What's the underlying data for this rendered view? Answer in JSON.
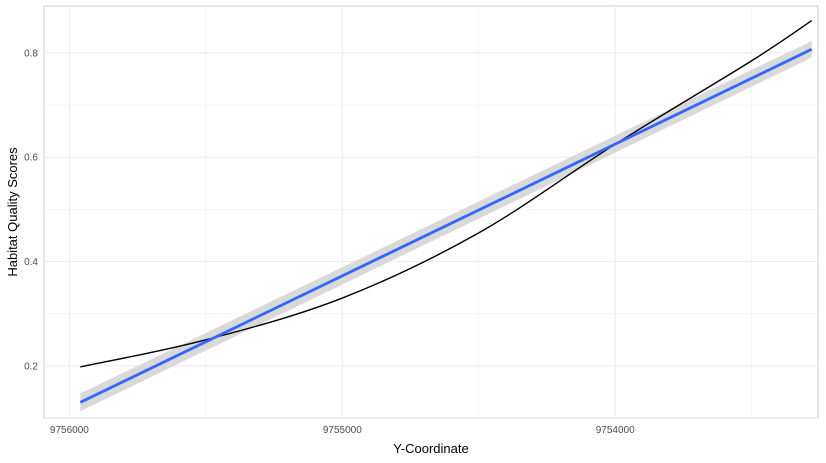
{
  "chart_data": {
    "type": "line",
    "title": "",
    "xlabel": "Y-Coordinate",
    "ylabel": "Habitat Quality Scores",
    "x_reversed": true,
    "xlim": [
      9756093,
      9753257
    ],
    "ylim": [
      0.1,
      0.89
    ],
    "x_ticks": [
      9756000,
      9755000,
      9754000
    ],
    "x_tick_labels": [
      "9756000",
      "9755000",
      "9754000"
    ],
    "y_ticks": [
      0.2,
      0.4,
      0.6,
      0.8
    ],
    "y_tick_labels": [
      "0.2",
      "0.4",
      "0.6",
      "0.8"
    ],
    "grid": true,
    "legend": "none",
    "series": [
      {
        "kind": "curve",
        "color": "#000000",
        "x": [
          9755960,
          9755500,
          9755000,
          9754500,
          9754000,
          9753500,
          9753280
        ],
        "y": [
          0.198,
          0.25,
          0.33,
          0.455,
          0.625,
          0.785,
          0.862
        ]
      },
      {
        "kind": "linear-fit",
        "color": "#3366ff",
        "band_color": "#d9d9d9",
        "x": [
          9755960,
          9753280
        ],
        "y": [
          0.13,
          0.807
        ],
        "band_low": [
          0.113,
          0.791
        ],
        "band_high": [
          0.147,
          0.823
        ]
      }
    ]
  }
}
